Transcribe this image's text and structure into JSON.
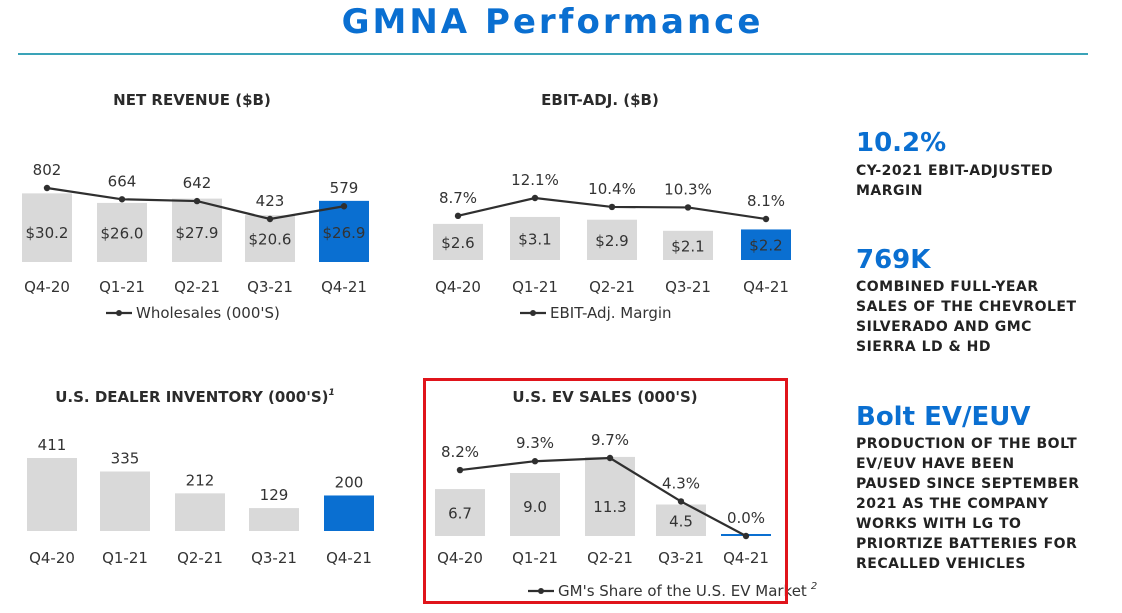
{
  "page_title": "GMNA Performance",
  "stats": [
    {
      "value": "10.2%",
      "description": [
        "CY-2021 EBIT-ADJUSTED",
        "MARGIN"
      ]
    },
    {
      "value": "769K",
      "description": [
        "COMBINED FULL-YEAR",
        "SALES OF THE CHEVROLET",
        "SILVERADO AND GMC",
        "SIERRA LD & HD"
      ]
    },
    {
      "value": "Bolt EV/EUV",
      "description": [
        "PRODUCTION OF THE BOLT",
        "EV/EUV HAVE BEEN",
        "PAUSED SINCE SEPTEMBER",
        "2021 AS THE COMPANY",
        "WORKS WITH LG TO",
        "PRIORTIZE BATTERIES FOR",
        "RECALLED VEHICLES"
      ]
    }
  ],
  "colors": {
    "title": "#0a6fd1",
    "bar": "#d9d9d9",
    "highlight_bar": "#0a6fd1",
    "line": "#2f2f2f",
    "rule": "#3aa3b8",
    "highlight_border": "#e0141b"
  },
  "chart_data": [
    {
      "id": "net-revenue",
      "type": "bar",
      "title": "NET REVENUE ($B)",
      "categories": [
        "Q4-20",
        "Q1-21",
        "Q2-21",
        "Q3-21",
        "Q4-21"
      ],
      "bar_values": [
        30.2,
        26.0,
        27.9,
        20.6,
        26.9
      ],
      "bar_labels": [
        "$30.2",
        "$26.0",
        "$27.9",
        "$20.6",
        "$26.9"
      ],
      "line_series": {
        "name": "Wholesales (000'S)",
        "values": [
          802,
          664,
          642,
          423,
          579
        ],
        "labels": [
          "802",
          "664",
          "642",
          "423",
          "579"
        ]
      },
      "highlight_index": 4
    },
    {
      "id": "ebit-adj",
      "type": "bar",
      "title": "EBIT-ADJ. ($B)",
      "categories": [
        "Q4-20",
        "Q1-21",
        "Q2-21",
        "Q3-21",
        "Q4-21"
      ],
      "bar_values": [
        2.6,
        3.1,
        2.9,
        2.1,
        2.2
      ],
      "bar_labels": [
        "$2.6",
        "$3.1",
        "$2.9",
        "$2.1",
        "$2.2"
      ],
      "line_series": {
        "name": "EBIT-Adj. Margin",
        "values": [
          8.7,
          12.1,
          10.4,
          10.3,
          8.1
        ],
        "labels": [
          "8.7%",
          "12.1%",
          "10.4%",
          "10.3%",
          "8.1%"
        ]
      },
      "highlight_index": 4
    },
    {
      "id": "dealer-inventory",
      "type": "bar",
      "title": "U.S. DEALER INVENTORY (000'S)",
      "title_superscript": "1",
      "categories": [
        "Q4-20",
        "Q1-21",
        "Q2-21",
        "Q3-21",
        "Q4-21"
      ],
      "bar_values": [
        411,
        335,
        212,
        129,
        200
      ],
      "bar_labels": [
        "411",
        "335",
        "212",
        "129",
        "200"
      ],
      "highlight_index": 4
    },
    {
      "id": "ev-sales",
      "type": "bar",
      "title": "U.S. EV SALES (000'S)",
      "categories": [
        "Q4-20",
        "Q1-21",
        "Q2-21",
        "Q3-21",
        "Q4-21"
      ],
      "bar_values": [
        6.7,
        9.0,
        11.3,
        4.5,
        0.0
      ],
      "bar_labels": [
        "6.7",
        "9.0",
        "11.3",
        "4.5",
        ""
      ],
      "line_series": {
        "name": "GM's Share of the U.S. EV Market",
        "name_superscript": "2",
        "values": [
          8.2,
          9.3,
          9.7,
          4.3,
          0.0
        ],
        "labels": [
          "8.2%",
          "9.3%",
          "9.7%",
          "4.3%",
          "0.0%"
        ]
      },
      "highlight_index": 4
    }
  ]
}
